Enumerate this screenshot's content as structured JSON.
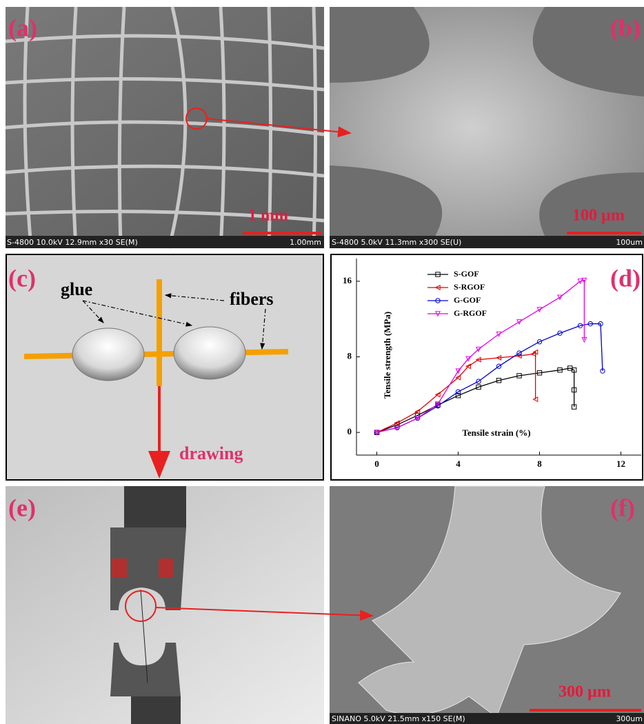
{
  "panels": {
    "a": {
      "label": "(a)",
      "scale": "1 mm",
      "info": "S-4800 10.0kV 12.9mm x30 SE(M)",
      "bar": "1.00mm"
    },
    "b": {
      "label": "(b)",
      "scale": "100 µm",
      "info": "S-4800 5.0kV 11.3mm x300 SE(U)",
      "bar": "100um"
    },
    "c": {
      "label": "(c)",
      "glue": "glue",
      "fibers": "fibers",
      "drawing": "drawing"
    },
    "d": {
      "label": "(d)"
    },
    "e": {
      "label": "(e)"
    },
    "f": {
      "label": "(f)",
      "scale": "300 µm",
      "info": "SINANO 5.0kV 21.5mm x150 SE(M)",
      "bar": "300um"
    }
  },
  "chart_data": {
    "type": "line",
    "xlabel": "Tensile strain (%)",
    "ylabel": "Tensile strength (MPa)",
    "xlim": [
      -1,
      13
    ],
    "ylim": [
      -2.4,
      18.4
    ],
    "xticks": [
      0,
      4,
      8,
      12
    ],
    "yticks": [
      0,
      8,
      16
    ],
    "series": [
      {
        "name": "S-GOF",
        "color": "#000000",
        "marker": "square",
        "x": [
          0,
          1,
          2,
          3,
          4,
          5,
          6,
          7,
          8,
          9,
          9.5,
          9.7,
          9.7,
          9.7
        ],
        "y": [
          0,
          0.8,
          1.8,
          2.9,
          3.9,
          4.8,
          5.5,
          6,
          6.3,
          6.6,
          6.8,
          6.6,
          4.5,
          2.7
        ]
      },
      {
        "name": "S-RGOF",
        "color": "#e00000",
        "marker": "triangle-left",
        "x": [
          0,
          1,
          2,
          3,
          4,
          4.5,
          5,
          6,
          7,
          7.7,
          7.8,
          7.8
        ],
        "y": [
          0,
          1,
          2.2,
          4,
          5.8,
          7,
          7.7,
          7.9,
          8.1,
          8.3,
          8.5,
          3.5
        ]
      },
      {
        "name": "G-GOF",
        "color": "#0000d0",
        "marker": "circle",
        "x": [
          0,
          1,
          2,
          3,
          4,
          5,
          6,
          7,
          8,
          9,
          10,
          10.5,
          11,
          11.1
        ],
        "y": [
          0,
          0.5,
          1.5,
          2.8,
          4.3,
          5.4,
          7,
          8.4,
          9.6,
          10.5,
          11.3,
          11.5,
          11.5,
          6.5
        ]
      },
      {
        "name": "G-RGOF",
        "color": "#e000e0",
        "marker": "triangle-down",
        "x": [
          0,
          1,
          2,
          3,
          4,
          4.5,
          5,
          6,
          7,
          8,
          9,
          10,
          10.2,
          10.2
        ],
        "y": [
          0,
          0.5,
          1.5,
          3,
          6.5,
          7.8,
          8.8,
          10.4,
          11.7,
          13,
          14.3,
          16,
          16.1,
          9.8
        ]
      }
    ]
  }
}
